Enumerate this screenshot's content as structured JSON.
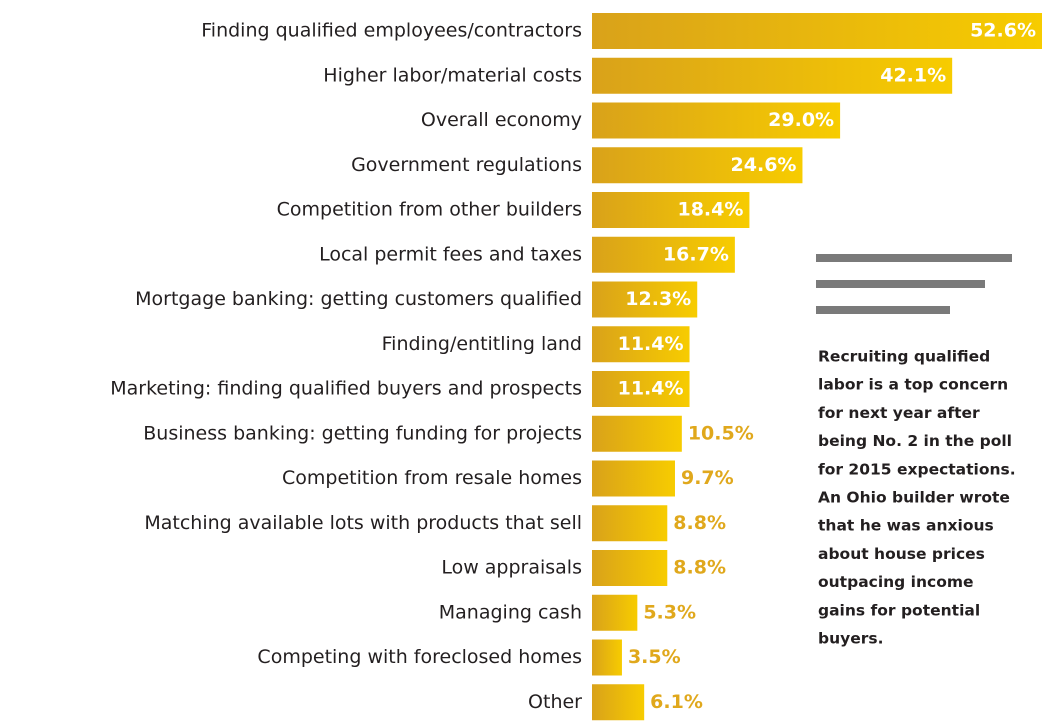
{
  "chart_data": {
    "type": "bar",
    "orientation": "horizontal",
    "categories": [
      "Finding qualified employees/contractors",
      "Higher labor/material costs",
      "Overall economy",
      "Government regulations",
      "Competition from other builders",
      "Local permit fees and taxes",
      "Mortgage banking: getting customers qualified",
      "Finding/entitling land",
      "Marketing: finding qualified buyers and prospects",
      "Business banking: getting funding for projects",
      "Competition from resale homes",
      "Matching available lots with products that sell",
      "Low appraisals",
      "Managing cash",
      "Competing with foreclosed homes",
      "Other"
    ],
    "values": [
      52.6,
      42.1,
      29.0,
      24.6,
      18.4,
      16.7,
      12.3,
      11.4,
      11.4,
      10.5,
      9.7,
      8.8,
      8.8,
      5.3,
      3.5,
      6.1
    ],
    "value_labels": [
      "52.6%",
      "42.1%",
      "29.0%",
      "24.6%",
      "18.4%",
      "16.7%",
      "12.3%",
      "11.4%",
      "11.4%",
      "10.5%",
      "9.7%",
      "8.8%",
      "8.8%",
      "5.3%",
      "3.5%",
      "6.1%"
    ],
    "color": "#f2c200",
    "annotation": [
      "Recruiting qualified",
      "labor is a top concern",
      "for next year after",
      "being No. 2 in the poll",
      "for 2015 expectations.",
      "An Ohio builder wrote",
      "that he was anxious",
      "about house prices",
      "outpacing income",
      "gains for potential",
      "buyers."
    ]
  }
}
